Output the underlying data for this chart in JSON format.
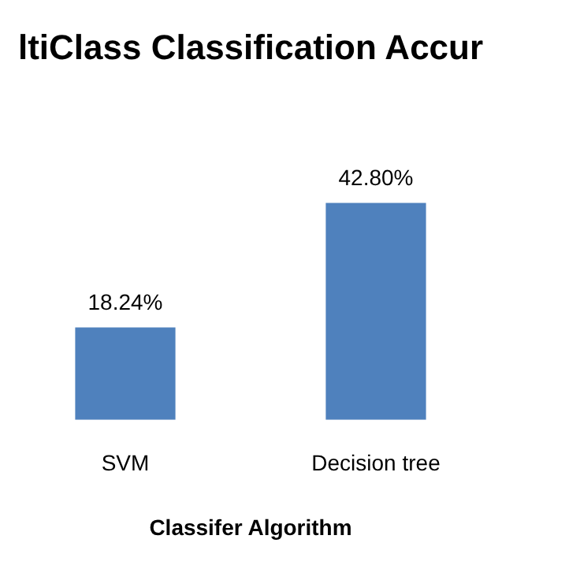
{
  "chart_data": {
    "type": "bar",
    "title": "ltiClass Classification Accur",
    "xlabel": "Classifer Algorithm",
    "categories": [
      "SVM",
      "Decision tree"
    ],
    "values": [
      18.24,
      42.8
    ],
    "value_labels": [
      "18.24%",
      "42.80%"
    ],
    "color": "#4f81bd",
    "tick_labels": "x",
    "legend": false,
    "grid": false
  }
}
